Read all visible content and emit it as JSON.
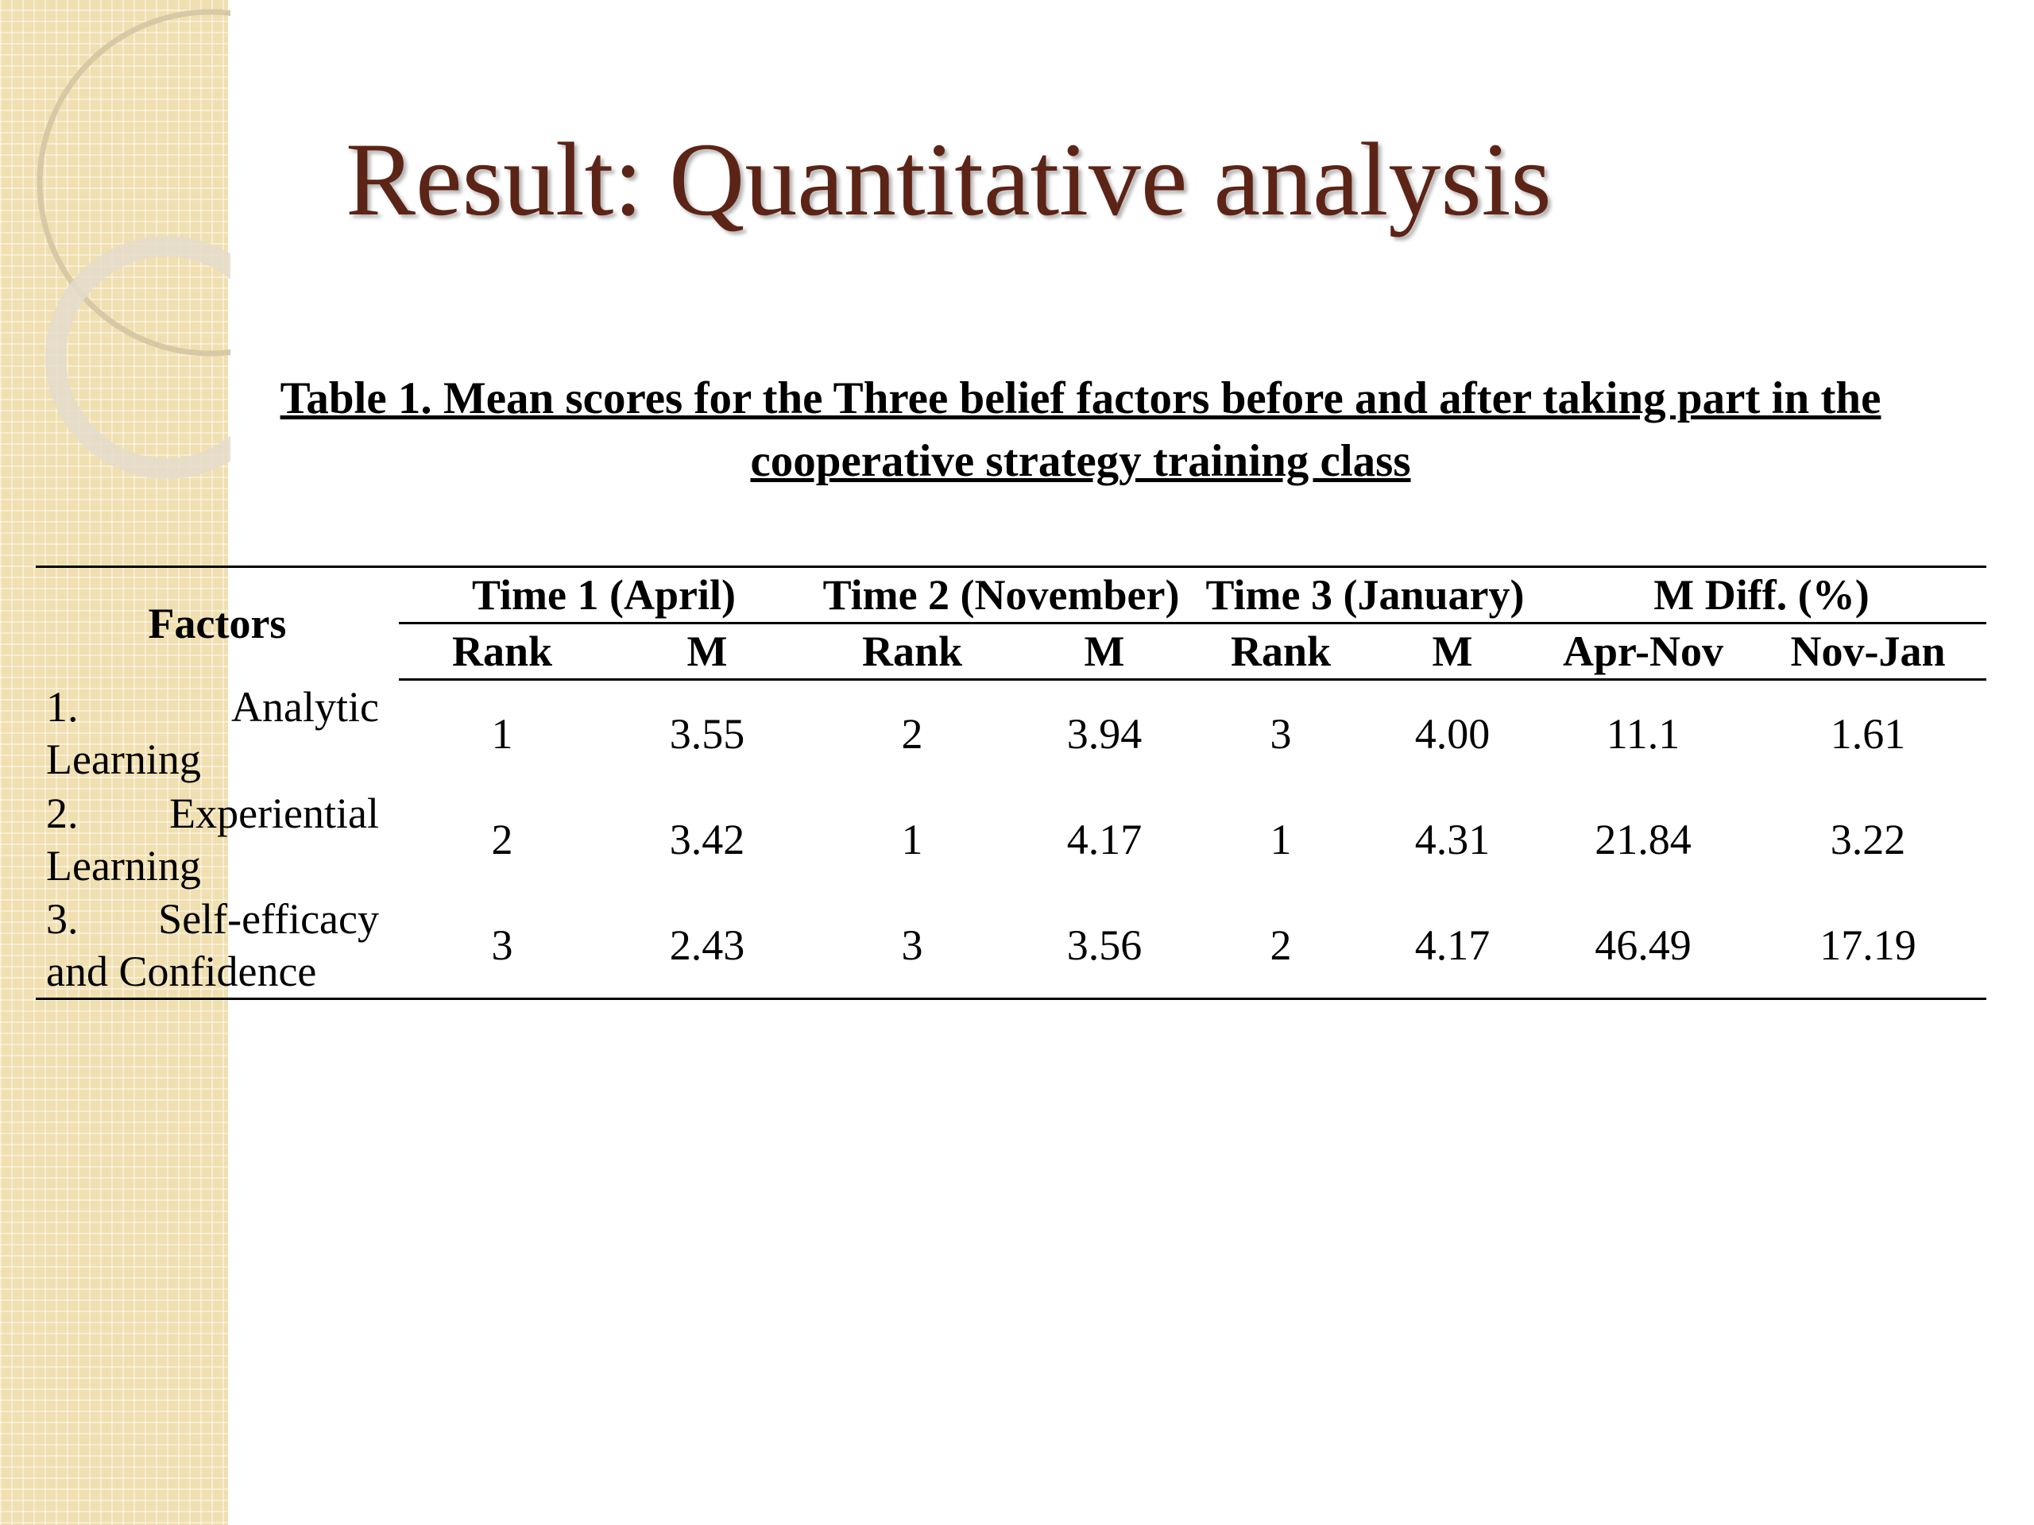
{
  "title": "Result: Quantitative analysis",
  "caption": "Table 1. Mean scores for the Three belief factors before and after taking part in the  cooperative strategy training class",
  "table": {
    "header_groups": [
      "Factors",
      "Time 1 (April)",
      "Time 2 (November)",
      "Time 3 (January)",
      "M Diff. (%)"
    ],
    "subheaders": [
      "Rank",
      "M",
      "Rank",
      "M",
      "Rank",
      "M",
      "Apr-Nov",
      "Nov-Jan"
    ],
    "rows": [
      [
        "1. Analytic Learning",
        "1",
        "3.55",
        "2",
        "3.94",
        "3",
        "4.00",
        "11.1",
        "1.61"
      ],
      [
        "2. Experiential Learning",
        "2",
        "3.42",
        "1",
        "4.17",
        "1",
        "4.31",
        "21.84",
        "3.22"
      ],
      [
        "3. Self-efficacy and Confidence",
        "3",
        "2.43",
        "3",
        "3.56",
        "2",
        "4.17",
        "46.49",
        "17.19"
      ]
    ]
  }
}
